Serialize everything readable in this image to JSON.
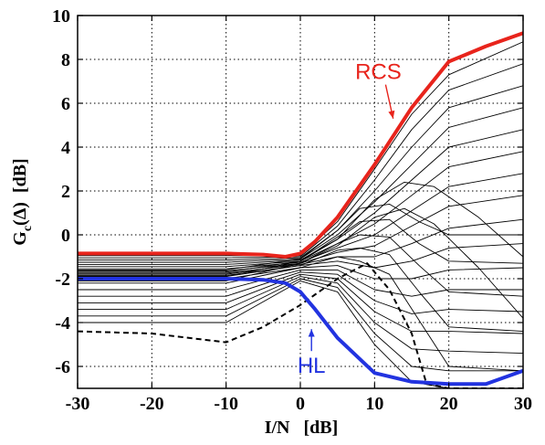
{
  "chart_data": {
    "type": "line",
    "xlabel": "I/N   [dB]",
    "ylabel": {
      "main": "G",
      "sub": "c",
      "rest": "(Δ)  [dB]"
    },
    "xlim": [
      -30,
      30
    ],
    "ylim": [
      -7,
      10
    ],
    "xticks": [
      -30,
      -20,
      -10,
      0,
      10,
      20,
      30
    ],
    "yticks": [
      -6,
      -4,
      -2,
      0,
      2,
      4,
      6,
      8,
      10
    ],
    "grid": true,
    "colors": {
      "rcs": "#e8241c",
      "hl": "#2233e0",
      "family": "#000000"
    },
    "annotations": [
      {
        "label": "RCS",
        "color": "#e8241c",
        "x": 10.5,
        "y": 7.1,
        "arrow_to": [
          12.5,
          5.3
        ]
      },
      {
        "label": "HL",
        "color": "#2233e0",
        "x": 1.5,
        "y": -6.3,
        "arrow_to": [
          1.5,
          -4.3
        ]
      }
    ],
    "series": [
      {
        "role": "rcs",
        "x": [
          -30,
          -20,
          -10,
          -5,
          -2,
          0,
          2,
          5,
          10,
          15,
          20,
          25,
          30
        ],
        "y": [
          -0.85,
          -0.85,
          -0.85,
          -0.9,
          -1.0,
          -0.85,
          -0.3,
          0.8,
          3.2,
          5.8,
          7.9,
          8.6,
          9.2
        ]
      },
      {
        "role": "hl",
        "x": [
          -30,
          -20,
          -10,
          -5,
          -2,
          0,
          2,
          5,
          10,
          15,
          20,
          25,
          30
        ],
        "y": [
          -2.0,
          -2.0,
          -2.0,
          -2.05,
          -2.2,
          -2.6,
          -3.4,
          -4.7,
          -6.3,
          -6.7,
          -6.8,
          -6.8,
          -6.2
        ]
      },
      {
        "role": "dashed",
        "x": [
          -30,
          -20,
          -10,
          -5,
          0,
          5,
          9,
          12,
          15,
          17,
          20,
          25,
          30
        ],
        "y": [
          -4.4,
          -4.5,
          -4.9,
          -4.2,
          -3.2,
          -2.0,
          -1.3,
          -2.5,
          -4.5,
          -6.8,
          -7.0,
          -7.0,
          -7.0
        ]
      },
      {
        "role": "family",
        "x": [
          -30,
          -10,
          0,
          5,
          10,
          15,
          20,
          30
        ],
        "y": [
          -0.95,
          -0.95,
          -0.95,
          0.6,
          3.0,
          5.5,
          7.3,
          8.8
        ]
      },
      {
        "role": "family",
        "x": [
          -30,
          -10,
          0,
          5,
          10,
          15,
          20,
          30
        ],
        "y": [
          -1.05,
          -1.05,
          -1.0,
          0.4,
          2.5,
          4.8,
          6.6,
          7.8
        ]
      },
      {
        "role": "family",
        "x": [
          -30,
          -10,
          0,
          5,
          10,
          15,
          20,
          30
        ],
        "y": [
          -1.15,
          -1.15,
          -1.05,
          0.2,
          2.0,
          4.0,
          5.8,
          6.8
        ]
      },
      {
        "role": "family",
        "x": [
          -30,
          -10,
          0,
          5,
          10,
          15,
          20,
          30
        ],
        "y": [
          -1.25,
          -1.25,
          -1.1,
          0.0,
          1.5,
          3.2,
          4.9,
          5.8
        ]
      },
      {
        "role": "family",
        "x": [
          -30,
          -10,
          0,
          5,
          10,
          15,
          20,
          30
        ],
        "y": [
          -1.35,
          -1.35,
          -1.15,
          -0.2,
          1.0,
          2.5,
          4.0,
          4.8
        ]
      },
      {
        "role": "family",
        "x": [
          -30,
          -10,
          0,
          5,
          10,
          15,
          20,
          30
        ],
        "y": [
          -1.45,
          -1.45,
          -1.2,
          -0.4,
          0.5,
          1.8,
          3.1,
          3.8
        ]
      },
      {
        "role": "family",
        "x": [
          -30,
          -10,
          0,
          5,
          10,
          15,
          20,
          30
        ],
        "y": [
          -1.55,
          -1.55,
          -1.25,
          -0.6,
          0.0,
          1.1,
          2.2,
          2.8
        ]
      },
      {
        "role": "family",
        "x": [
          -30,
          -10,
          0,
          5,
          10,
          15,
          20,
          30
        ],
        "y": [
          -1.65,
          -1.65,
          -1.3,
          -0.8,
          -0.5,
          0.4,
          1.3,
          1.8
        ]
      },
      {
        "role": "family",
        "x": [
          -30,
          -10,
          0,
          5,
          10,
          15,
          20,
          30
        ],
        "y": [
          -1.75,
          -1.75,
          -1.35,
          -1.0,
          -1.0,
          -0.4,
          0.3,
          0.7
        ]
      },
      {
        "role": "family",
        "x": [
          -30,
          -10,
          0,
          5,
          10,
          15,
          20,
          30
        ],
        "y": [
          -1.85,
          -1.85,
          -1.4,
          -1.2,
          -1.5,
          -1.2,
          -0.6,
          -0.4
        ]
      },
      {
        "role": "family",
        "x": [
          -30,
          -10,
          0,
          5,
          10,
          15,
          20,
          30
        ],
        "y": [
          -2.2,
          -2.2,
          -1.5,
          -1.4,
          -2.0,
          -2.0,
          -1.6,
          -1.5
        ]
      },
      {
        "role": "family",
        "x": [
          -30,
          -10,
          0,
          5,
          10,
          15,
          20,
          30
        ],
        "y": [
          -2.5,
          -2.5,
          -1.6,
          -1.6,
          -2.5,
          -2.8,
          -2.5,
          -2.5
        ]
      },
      {
        "role": "family",
        "x": [
          -30,
          -10,
          0,
          5,
          10,
          15,
          20,
          30
        ],
        "y": [
          -2.8,
          -2.8,
          -1.7,
          -1.8,
          -3.0,
          -3.6,
          -3.4,
          -3.5
        ]
      },
      {
        "role": "family",
        "x": [
          -30,
          -10,
          0,
          5,
          10,
          15,
          20,
          30
        ],
        "y": [
          -3.1,
          -3.1,
          -1.8,
          -2.0,
          -3.5,
          -4.4,
          -4.4,
          -4.5
        ]
      },
      {
        "role": "family",
        "x": [
          -30,
          -10,
          0,
          5,
          10,
          15,
          20,
          30
        ],
        "y": [
          -3.4,
          -3.4,
          -1.9,
          -2.2,
          -4.0,
          -5.2,
          -5.3,
          -5.4
        ]
      },
      {
        "role": "family",
        "x": [
          -30,
          -10,
          0,
          5,
          10,
          15,
          20,
          30
        ],
        "y": [
          -3.7,
          -3.7,
          -2.0,
          -2.4,
          -4.5,
          -6.0,
          -6.2,
          -6.2
        ]
      },
      {
        "role": "family",
        "x": [
          -30,
          -10,
          0,
          5,
          10,
          15,
          20,
          30
        ],
        "y": [
          -4.0,
          -4.0,
          -2.1,
          -2.6,
          -5.0,
          -6.7,
          -7.0,
          -7.0
        ]
      },
      {
        "role": "family",
        "x": [
          -30,
          -10,
          0,
          5,
          8,
          12,
          16,
          20,
          30
        ],
        "y": [
          -1.6,
          -1.6,
          -1.1,
          0.2,
          1.2,
          1.4,
          0.6,
          0.0,
          0.0
        ]
      },
      {
        "role": "family",
        "x": [
          -30,
          -10,
          0,
          5,
          8,
          12,
          16,
          20,
          30
        ],
        "y": [
          -1.7,
          -1.7,
          -1.2,
          -0.1,
          0.6,
          0.7,
          -0.4,
          -1.2,
          -1.3
        ]
      },
      {
        "role": "family",
        "x": [
          -30,
          -10,
          0,
          5,
          8,
          12,
          16,
          20,
          30
        ],
        "y": [
          -1.8,
          -1.8,
          -1.3,
          -0.4,
          0.0,
          -0.1,
          -1.4,
          -2.6,
          -2.8
        ]
      },
      {
        "role": "family",
        "x": [
          -30,
          -10,
          0,
          5,
          8,
          12,
          16,
          20,
          30
        ],
        "y": [
          -1.9,
          -1.9,
          -1.4,
          -0.7,
          -0.6,
          -0.9,
          -2.6,
          -4.2,
          -4.4
        ]
      },
      {
        "role": "family",
        "x": [
          -30,
          -10,
          0,
          5,
          8,
          12,
          16,
          20,
          30
        ],
        "y": [
          -2.0,
          -2.0,
          -1.5,
          -1.0,
          -1.2,
          -1.8,
          -3.9,
          -6.0,
          -6.2
        ]
      },
      {
        "role": "family",
        "x": [
          -30,
          -10,
          0,
          5,
          10,
          14,
          18,
          24,
          30
        ],
        "y": [
          -2.1,
          -2.1,
          -1.3,
          -0.5,
          0.8,
          1.2,
          0.5,
          -1.5,
          -3.8
        ]
      },
      {
        "role": "family",
        "x": [
          -30,
          -10,
          0,
          5,
          10,
          14,
          18,
          24,
          30
        ],
        "y": [
          -1.9,
          -1.9,
          -1.2,
          -0.2,
          1.6,
          2.4,
          2.2,
          0.8,
          -1.0
        ]
      }
    ]
  }
}
